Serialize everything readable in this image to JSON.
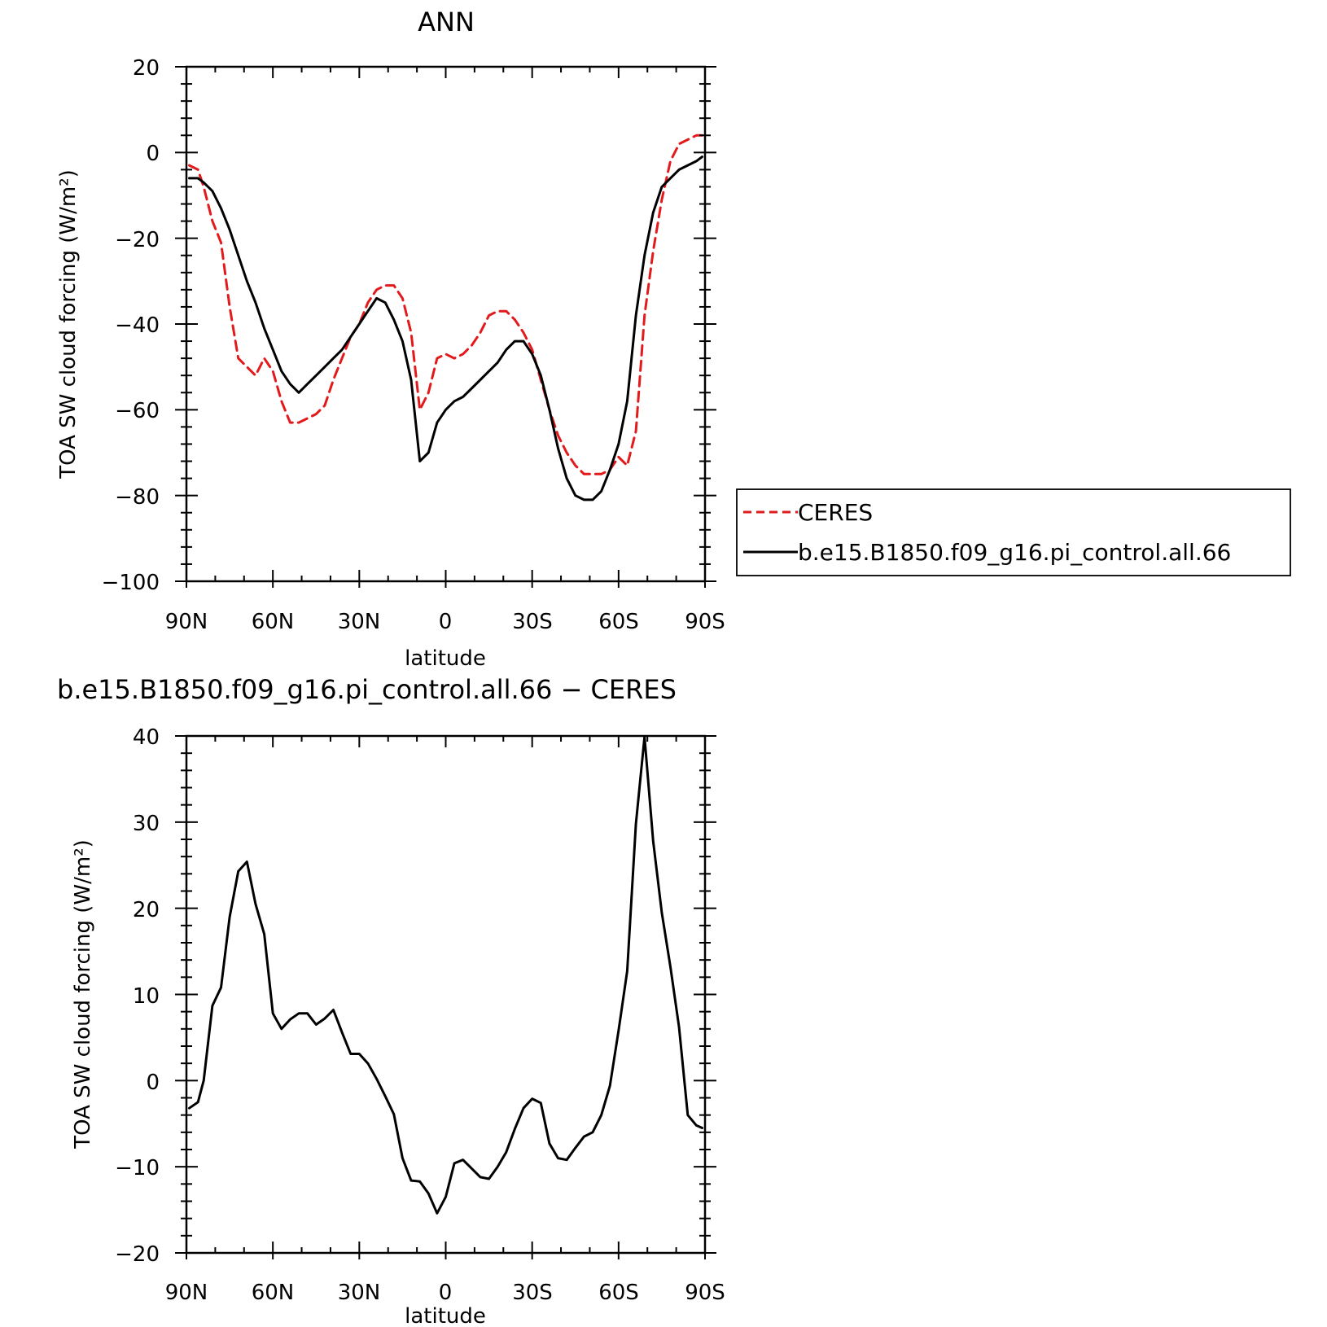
{
  "chart_data": [
    {
      "type": "line",
      "title": "ANN",
      "xlabel": "latitude",
      "ylabel": "TOA SW cloud forcing (W/m²)",
      "xlim": [
        90,
        -90
      ],
      "ylim": [
        -100,
        20
      ],
      "xticks": [
        90,
        60,
        30,
        0,
        -30,
        -60,
        -90
      ],
      "xtick_labels": [
        "90N",
        "60N",
        "30N",
        "0",
        "30S",
        "60S",
        "90S"
      ],
      "yticks": [
        20,
        0,
        -20,
        -40,
        -60,
        -80,
        -100
      ],
      "ytick_labels": [
        "20",
        "0",
        "−20",
        "−40",
        "−60",
        "−80",
        "−100"
      ],
      "grid": false,
      "legend": "right-outside",
      "series": [
        {
          "name": "CERES",
          "color": "#e31a1c",
          "dash": "dashed",
          "x": [
            89,
            86,
            84,
            81,
            78,
            75,
            72,
            69,
            66,
            63,
            60,
            57,
            54,
            51,
            48,
            45,
            42,
            39,
            36,
            33,
            30,
            27,
            24,
            21,
            18,
            15,
            12,
            9,
            6,
            3,
            0,
            -3,
            -6,
            -9,
            -12,
            -15,
            -18,
            -21,
            -24,
            -27,
            -30,
            -33,
            -36,
            -39,
            -42,
            -45,
            -48,
            -51,
            -54,
            -57,
            -60,
            -63,
            -66,
            -69,
            -72,
            -75,
            -78,
            -81,
            -84,
            -87,
            -89
          ],
          "y": [
            -3,
            -4,
            -8,
            -16,
            -21,
            -36,
            -48,
            -50,
            -52,
            -48,
            -51,
            -58,
            -63,
            -63,
            -62,
            -61,
            -59,
            -53,
            -48,
            -43,
            -40,
            -35,
            -32,
            -31,
            -31,
            -34,
            -42,
            -60,
            -56,
            -48,
            -47,
            -48,
            -47,
            -45,
            -42,
            -38,
            -37,
            -37,
            -39,
            -42,
            -46,
            -53,
            -60,
            -66,
            -70,
            -73,
            -75,
            -75,
            -75,
            -74,
            -71,
            -73,
            -65,
            -38,
            -23,
            -11,
            -2,
            2,
            3,
            4,
            4
          ]
        },
        {
          "name": "b.e15.B1850.f09_g16.pi_control.all.66",
          "color": "#000000",
          "dash": "solid",
          "x": [
            89,
            86,
            84,
            81,
            78,
            75,
            72,
            69,
            66,
            63,
            60,
            57,
            54,
            51,
            48,
            45,
            42,
            39,
            36,
            33,
            30,
            27,
            24,
            21,
            18,
            15,
            12,
            9,
            6,
            3,
            0,
            -3,
            -6,
            -9,
            -12,
            -15,
            -18,
            -21,
            -24,
            -27,
            -30,
            -33,
            -36,
            -39,
            -42,
            -45,
            -48,
            -51,
            -54,
            -57,
            -60,
            -63,
            -66,
            -69,
            -72,
            -75,
            -78,
            -81,
            -84,
            -87,
            -89
          ],
          "y": [
            -6,
            -6,
            -7,
            -9,
            -13,
            -18,
            -24,
            -30,
            -35,
            -41,
            -46,
            -51,
            -54,
            -56,
            -54,
            -52,
            -50,
            -48,
            -46,
            -43,
            -40,
            -37,
            -34,
            -35,
            -39,
            -44,
            -53,
            -72,
            -70,
            -63,
            -60,
            -58,
            -57,
            -55,
            -53,
            -51,
            -49,
            -46,
            -44,
            -44,
            -47,
            -52,
            -60,
            -69,
            -76,
            -80,
            -81,
            -81,
            -79,
            -74,
            -68,
            -58,
            -38,
            -24,
            -14,
            -8,
            -6,
            -4,
            -3,
            -2,
            -1
          ]
        }
      ]
    },
    {
      "type": "line",
      "title": "b.e15.B1850.f09_g16.pi_control.all.66 − CERES",
      "xlabel": "latitude",
      "ylabel": "TOA SW cloud forcing (W/m²)",
      "xlim": [
        90,
        -90
      ],
      "ylim": [
        -20,
        40
      ],
      "xticks": [
        90,
        60,
        30,
        0,
        -30,
        -60,
        -90
      ],
      "xtick_labels": [
        "90N",
        "60N",
        "30N",
        "0",
        "30S",
        "60S",
        "90S"
      ],
      "yticks": [
        40,
        30,
        20,
        10,
        0,
        -10,
        -20
      ],
      "ytick_labels": [
        "40",
        "30",
        "20",
        "10",
        "0",
        "−10",
        "−20"
      ],
      "grid": false,
      "series": [
        {
          "color": "#000000",
          "dash": "solid",
          "x": [
            89,
            86,
            84,
            81,
            78,
            75,
            72,
            69,
            66,
            63,
            60,
            57,
            54,
            51,
            48,
            45,
            42,
            39,
            36,
            33,
            30,
            27,
            24,
            21,
            18,
            15,
            12,
            9,
            6,
            3,
            0,
            -3,
            -6,
            -9,
            -12,
            -15,
            -18,
            -21,
            -24,
            -27,
            -30,
            -33,
            -36,
            -39,
            -42,
            -45,
            -48,
            -51,
            -54,
            -57,
            -60,
            -63,
            -66,
            -69,
            -72,
            -75,
            -78,
            -81,
            -84,
            -87,
            -89
          ],
          "y": [
            -3.2,
            -2.5,
            0,
            8.7,
            10.8,
            19,
            24.3,
            25.4,
            20.5,
            17,
            7.8,
            6,
            7.1,
            7.8,
            7.8,
            6.5,
            7.2,
            8.2,
            5.6,
            3.1,
            3.1,
            2,
            0.2,
            -1.8,
            -3.9,
            -9,
            -11.6,
            -11.7,
            -13.1,
            -15.4,
            -13.5,
            -9.6,
            -9.2,
            -10.2,
            -11.2,
            -11.4,
            -10,
            -8.3,
            -5.6,
            -3.2,
            -2.1,
            -2.6,
            -7.3,
            -9,
            -9.2,
            -7.8,
            -6.5,
            -6,
            -4,
            -0.6,
            5.8,
            12.7,
            29.8,
            39.9,
            27.8,
            19.5,
            13.2,
            6.2,
            -4,
            -5.2,
            -5.5
          ]
        }
      ]
    }
  ]
}
